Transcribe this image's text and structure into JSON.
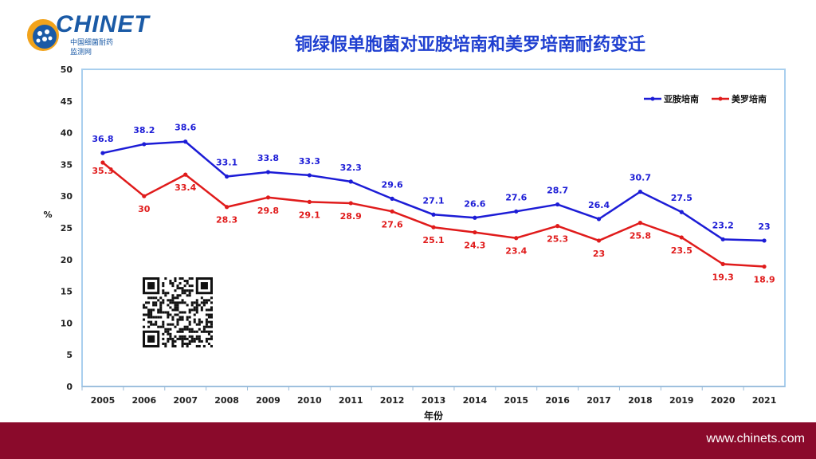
{
  "logo": {
    "wordmark": "CHINET",
    "line1": "中国细菌耐药",
    "line2": "监测网"
  },
  "page_title": "铜绿假单胞菌对亚胺培南和美罗培南耐药变迁",
  "footer": {
    "url": "www.chinets.com"
  },
  "colors": {
    "series1": "#1c1cd6",
    "series2": "#e01b1b",
    "frame": "#a9cfee",
    "footer": "#8a0a2b"
  },
  "chart_data": {
    "type": "line",
    "title": "",
    "xlabel": "年份",
    "ylabel": "%",
    "ylim": [
      0,
      50
    ],
    "yticks": [
      0,
      5,
      10,
      15,
      20,
      25,
      30,
      35,
      40,
      45,
      50
    ],
    "grid": false,
    "legend_position": "top-right",
    "categories": [
      "2005",
      "2006",
      "2007",
      "2008",
      "2009",
      "2010",
      "2011",
      "2012",
      "2013",
      "2014",
      "2015",
      "2016",
      "2017",
      "2018",
      "2019",
      "2020",
      "2021"
    ],
    "series": [
      {
        "name": "亚胺培南",
        "color": "#1c1cd6",
        "values": [
          36.8,
          38.2,
          38.6,
          33.1,
          33.8,
          33.3,
          32.3,
          29.6,
          27.1,
          26.6,
          27.6,
          28.7,
          26.4,
          30.7,
          27.5,
          23.2,
          23
        ]
      },
      {
        "name": "美罗培南",
        "color": "#e01b1b",
        "values": [
          35.3,
          30,
          33.4,
          28.3,
          29.8,
          29.1,
          28.9,
          27.6,
          25.1,
          24.3,
          23.4,
          25.3,
          23,
          25.8,
          23.5,
          19.3,
          18.9
        ]
      }
    ]
  }
}
